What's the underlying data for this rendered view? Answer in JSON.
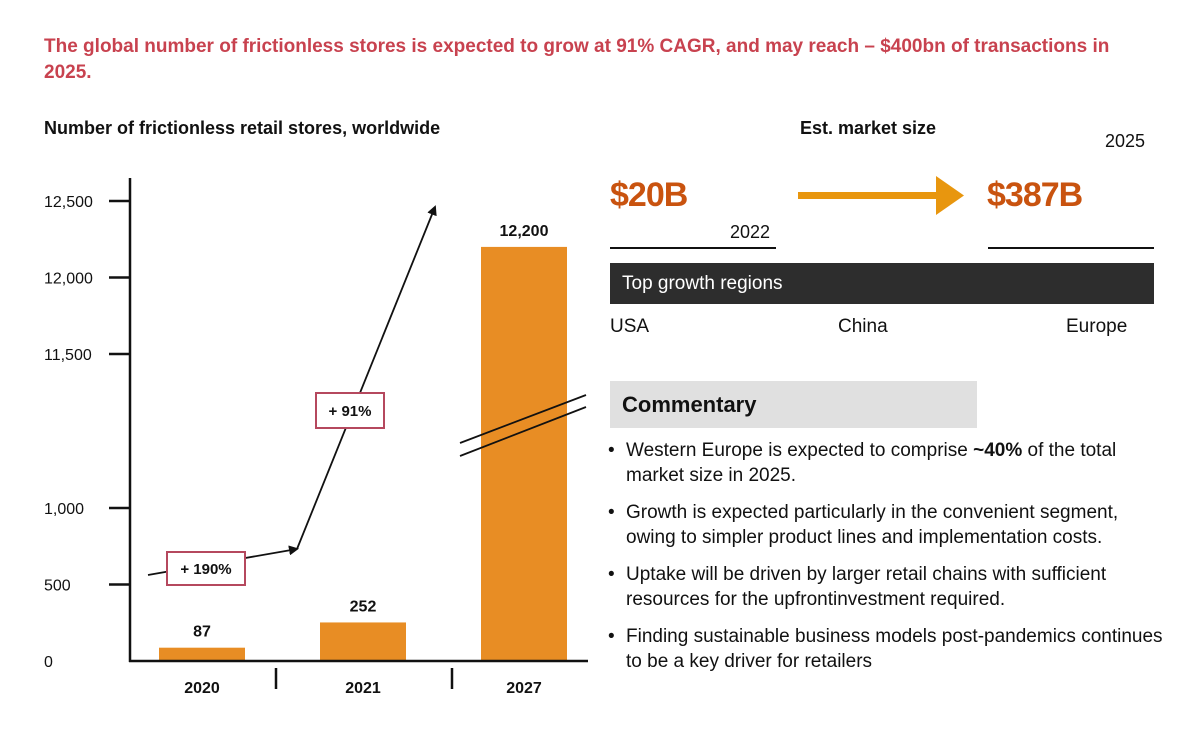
{
  "headline": "The global number of frictionless stores is expected to grow at 91% CAGR, and may reach – $400bn of transactions in 2025.",
  "colors": {
    "headline": "#c8424f",
    "bar": "#e88d24",
    "market_value": "#c9530f",
    "arrow": "#e8960e",
    "annotation_border": "#b5485e",
    "regions_bar": "#2d2d2d",
    "commentary_bg": "#e0e0e0"
  },
  "chart_data": {
    "type": "bar",
    "title": "Number of frictionless retail stores, worldwide",
    "xlabel": "",
    "ylabel": "",
    "categories": [
      "2020",
      "2021",
      "2027"
    ],
    "values": [
      87,
      252,
      12200
    ],
    "data_labels": [
      "87",
      "252",
      "12,200"
    ],
    "y_ticks": [
      {
        "value": 0,
        "label": "0"
      },
      {
        "value": 500,
        "label": "500"
      },
      {
        "value": 1000,
        "label": "1,000"
      },
      {
        "value": 11500,
        "label": "11,500"
      },
      {
        "value": 12000,
        "label": "12,000"
      },
      {
        "value": 12500,
        "label": "12,500"
      }
    ],
    "ylim": [
      0,
      12500
    ],
    "axis_break": {
      "between": [
        1000,
        11500
      ],
      "shown_on": "2027"
    },
    "grid": false,
    "legend": "none",
    "annotations": [
      {
        "label": "+ 190%",
        "from": "2020",
        "to": "2021"
      },
      {
        "label": "+ 91%",
        "from": "2021",
        "to": "2027"
      }
    ]
  },
  "market": {
    "title": "Est. market size",
    "from_value": "$20B",
    "from_year": "2022",
    "to_value": "$387B",
    "to_year": "2025",
    "arrow_icon": "arrow-right-icon"
  },
  "regions": {
    "title": "Top growth regions",
    "items": [
      "USA",
      "China",
      "Europe"
    ]
  },
  "commentary": {
    "title": "Commentary",
    "bullets": [
      {
        "pre": "Western Europe is expected to comprise ",
        "bold": "~40%",
        "post": " of the total market size in 2025."
      },
      {
        "pre": "Growth is expected particularly in the convenient segment, owing to simpler product lines and implementation costs.",
        "bold": "",
        "post": ""
      },
      {
        "pre": "Uptake will be driven by larger retail chains with sufficient resources for the upfrontinvestment required.",
        "bold": "",
        "post": ""
      },
      {
        "pre": "Finding sustainable business models post-pandemics continues to be a key driver for retailers",
        "bold": "",
        "post": ""
      }
    ]
  }
}
